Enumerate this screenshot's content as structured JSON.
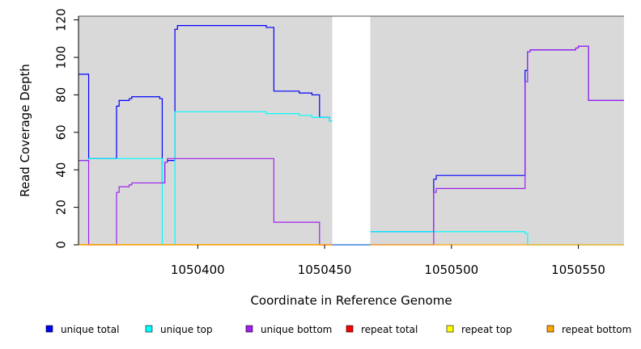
{
  "chart_data": {
    "type": "line",
    "title": "",
    "xlabel": "Coordinate in Reference Genome",
    "ylabel": "Read Coverage Depth",
    "xlim": [
      1050353,
      1050568
    ],
    "ylim": [
      0,
      122
    ],
    "x_ticks": [
      1050400,
      1050450,
      1050500,
      1050550
    ],
    "y_ticks": [
      0,
      20,
      40,
      60,
      80,
      100,
      120
    ],
    "grid": false,
    "legend_position": "bottom",
    "background_color": "#d9d9d9",
    "gaps": [
      [
        1050453,
        1050468
      ]
    ],
    "series": [
      {
        "name": "unique total",
        "color": "#0000ff",
        "points": [
          [
            1050353,
            91
          ],
          [
            1050357,
            91
          ],
          [
            1050357,
            46
          ],
          [
            1050368,
            46
          ],
          [
            1050368,
            74
          ],
          [
            1050369,
            74
          ],
          [
            1050369,
            77
          ],
          [
            1050373,
            77
          ],
          [
            1050373,
            78
          ],
          [
            1050374,
            78
          ],
          [
            1050374,
            79
          ],
          [
            1050385,
            79
          ],
          [
            1050385,
            78
          ],
          [
            1050386,
            78
          ],
          [
            1050386,
            33
          ],
          [
            1050387,
            33
          ],
          [
            1050387,
            44
          ],
          [
            1050388,
            44
          ],
          [
            1050388,
            45
          ],
          [
            1050391,
            45
          ],
          [
            1050391,
            115
          ],
          [
            1050392,
            115
          ],
          [
            1050392,
            117
          ],
          [
            1050427,
            117
          ],
          [
            1050427,
            116
          ],
          [
            1050430,
            116
          ],
          [
            1050430,
            82
          ],
          [
            1050440,
            82
          ],
          [
            1050440,
            81
          ],
          [
            1050445,
            81
          ],
          [
            1050445,
            80
          ],
          [
            1050448,
            80
          ],
          [
            1050448,
            68
          ],
          [
            1050452,
            68
          ],
          [
            1050452,
            66
          ],
          [
            1050453,
            66
          ]
        ]
      },
      {
        "name": "unique top",
        "color": "#00ffff",
        "points": [
          [
            1050353,
            45
          ],
          [
            1050357,
            45
          ],
          [
            1050357,
            46
          ],
          [
            1050386,
            46
          ],
          [
            1050386,
            0
          ],
          [
            1050391,
            0
          ],
          [
            1050391,
            71
          ],
          [
            1050427,
            71
          ],
          [
            1050427,
            70
          ],
          [
            1050440,
            70
          ],
          [
            1050440,
            69
          ],
          [
            1050445,
            69
          ],
          [
            1050445,
            68
          ],
          [
            1050452,
            68
          ],
          [
            1050452,
            66
          ],
          [
            1050453,
            66
          ]
        ]
      },
      {
        "name": "unique bottom",
        "color": "#a020f0",
        "points": [
          [
            1050353,
            45
          ],
          [
            1050357,
            45
          ],
          [
            1050357,
            0
          ],
          [
            1050368,
            0
          ],
          [
            1050368,
            28
          ],
          [
            1050369,
            28
          ],
          [
            1050369,
            31
          ],
          [
            1050373,
            31
          ],
          [
            1050373,
            32
          ],
          [
            1050374,
            32
          ],
          [
            1050374,
            33
          ],
          [
            1050387,
            33
          ],
          [
            1050387,
            44
          ],
          [
            1050388,
            44
          ],
          [
            1050388,
            46
          ],
          [
            1050430,
            46
          ],
          [
            1050430,
            12
          ],
          [
            1050448,
            12
          ],
          [
            1050448,
            0
          ],
          [
            1050453,
            0
          ]
        ]
      },
      {
        "name": "repeat total",
        "color": "#ff0000",
        "points": [
          [
            1050353,
            0
          ],
          [
            1050453,
            0
          ]
        ]
      },
      {
        "name": "repeat top",
        "color": "#ffff00",
        "points": [
          [
            1050353,
            0
          ],
          [
            1050453,
            0
          ]
        ]
      },
      {
        "name": "repeat bottom",
        "color": "#ffa500",
        "points": [
          [
            1050353,
            0
          ],
          [
            1050453,
            0
          ]
        ]
      },
      {
        "name": "unique total",
        "color": "#0000ff",
        "points": [
          [
            1050468,
            7
          ],
          [
            1050493,
            7
          ],
          [
            1050493,
            35
          ],
          [
            1050494,
            35
          ],
          [
            1050494,
            37
          ],
          [
            1050529,
            37
          ],
          [
            1050529,
            93
          ],
          [
            1050530,
            93
          ],
          [
            1050530,
            103
          ],
          [
            1050531,
            103
          ],
          [
            1050531,
            104
          ],
          [
            1050549,
            104
          ],
          [
            1050549,
            105
          ],
          [
            1050550,
            105
          ],
          [
            1050550,
            106
          ],
          [
            1050554,
            106
          ],
          [
            1050554,
            77
          ],
          [
            1050568,
            77
          ]
        ]
      },
      {
        "name": "unique top",
        "color": "#00ffff",
        "points": [
          [
            1050468,
            7
          ],
          [
            1050529,
            7
          ],
          [
            1050529,
            6
          ],
          [
            1050530,
            6
          ],
          [
            1050530,
            0
          ],
          [
            1050568,
            0
          ]
        ]
      },
      {
        "name": "unique bottom",
        "color": "#a020f0",
        "points": [
          [
            1050468,
            0
          ],
          [
            1050493,
            0
          ],
          [
            1050493,
            28
          ],
          [
            1050494,
            28
          ],
          [
            1050494,
            30
          ],
          [
            1050529,
            30
          ],
          [
            1050529,
            87
          ],
          [
            1050530,
            87
          ],
          [
            1050530,
            103
          ],
          [
            1050531,
            103
          ],
          [
            1050531,
            104
          ],
          [
            1050549,
            104
          ],
          [
            1050549,
            105
          ],
          [
            1050550,
            105
          ],
          [
            1050550,
            106
          ],
          [
            1050554,
            106
          ],
          [
            1050554,
            77
          ],
          [
            1050568,
            77
          ]
        ]
      },
      {
        "name": "repeat bottom",
        "color": "#ffa500",
        "points": [
          [
            1050468,
            0
          ],
          [
            1050568,
            0
          ]
        ]
      }
    ],
    "legend": [
      {
        "label": "unique total",
        "color": "#0000ff"
      },
      {
        "label": "unique top",
        "color": "#00ffff"
      },
      {
        "label": "unique bottom",
        "color": "#a020f0"
      },
      {
        "label": "repeat total",
        "color": "#ff0000"
      },
      {
        "label": "repeat top",
        "color": "#ffff00"
      },
      {
        "label": "repeat bottom",
        "color": "#ffa500"
      }
    ]
  }
}
